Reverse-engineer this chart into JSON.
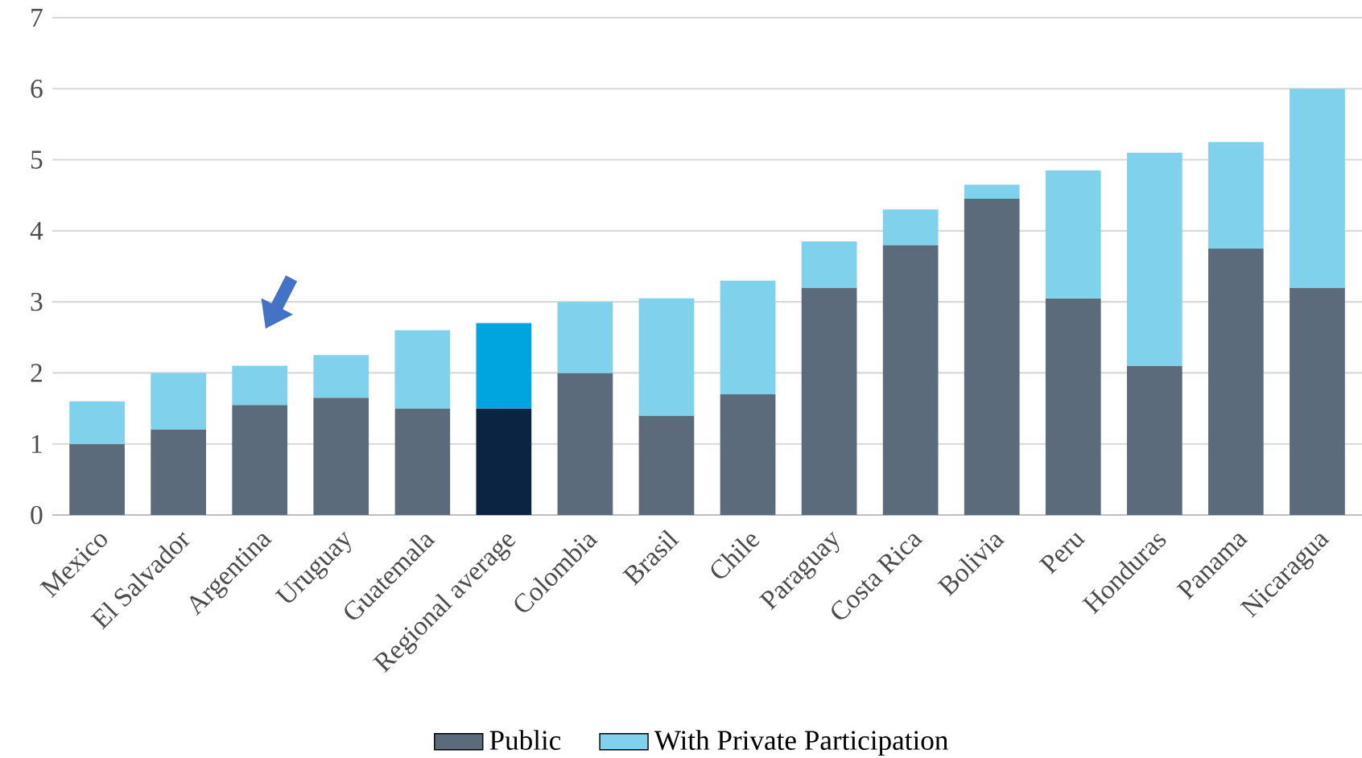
{
  "chart_data": {
    "type": "bar",
    "stacked": true,
    "categories": [
      "Mexico",
      "El Salvador",
      "Argentina",
      "Uruguay",
      "Guatemala",
      "Regional average",
      "Colombia",
      "Brasil",
      "Chile",
      "Paraguay",
      "Costa Rica",
      "Bolivia",
      "Peru",
      "Honduras",
      "Panama",
      "Nicaragua"
    ],
    "series": [
      {
        "name": "Public",
        "color": "#5b6b7c",
        "colors": [
          "#5b6b7c",
          "#5b6b7c",
          "#5b6b7c",
          "#5b6b7c",
          "#5b6b7c",
          "#0b2442",
          "#5b6b7c",
          "#5b6b7c",
          "#5b6b7c",
          "#5b6b7c",
          "#5b6b7c",
          "#5b6b7c",
          "#5b6b7c",
          "#5b6b7c",
          "#5b6b7c",
          "#5b6b7c"
        ],
        "values": [
          1.0,
          1.2,
          1.55,
          1.65,
          1.5,
          1.5,
          2.0,
          1.4,
          1.7,
          3.2,
          3.8,
          4.45,
          3.05,
          2.1,
          3.75,
          3.2
        ]
      },
      {
        "name": "With Private Participation",
        "color": "#7fd1ec",
        "colors": [
          "#7fd1ec",
          "#7fd1ec",
          "#7fd1ec",
          "#7fd1ec",
          "#7fd1ec",
          "#00a5df",
          "#7fd1ec",
          "#7fd1ec",
          "#7fd1ec",
          "#7fd1ec",
          "#7fd1ec",
          "#7fd1ec",
          "#7fd1ec",
          "#7fd1ec",
          "#7fd1ec",
          "#7fd1ec"
        ],
        "values": [
          0.6,
          0.8,
          0.55,
          0.6,
          1.1,
          1.2,
          1.0,
          1.65,
          1.6,
          0.65,
          0.5,
          0.2,
          1.8,
          3.0,
          1.5,
          2.8
        ]
      }
    ],
    "ylim": [
      0,
      7
    ],
    "yticks": [
      0,
      1,
      2,
      3,
      4,
      5,
      6,
      7
    ],
    "grid": "y",
    "legend": "bottom"
  }
}
